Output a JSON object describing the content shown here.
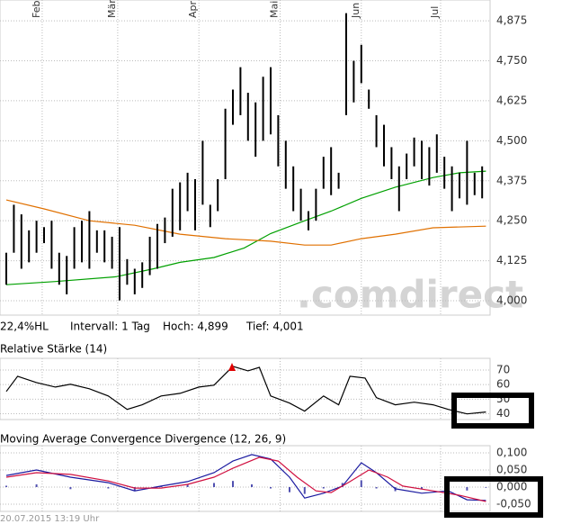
{
  "chart_data": [
    {
      "type": "stock",
      "xlim": [
        -1.67,
        128.1
      ],
      "ylim": [
        3.955,
        4.94
      ],
      "xticks": [
        {
          "value": 9.5,
          "label": "Feb"
        },
        {
          "value": 29.5,
          "label": "Mär"
        },
        {
          "value": 51,
          "label": "Apr"
        },
        {
          "value": 72.5,
          "label": "Mai"
        },
        {
          "value": 94,
          "label": "Jun"
        },
        {
          "value": 115,
          "label": "Jul"
        }
      ],
      "yticks": [
        {
          "value": 4.875,
          "label": "4,875"
        },
        {
          "value": 4.75,
          "label": "4,750"
        },
        {
          "value": 4.625,
          "label": "4,625"
        },
        {
          "value": 4.5,
          "label": "4,500"
        },
        {
          "value": 4.375,
          "label": "4,375"
        },
        {
          "value": 4.25,
          "label": "4,250"
        },
        {
          "value": 4.125,
          "label": "4,125"
        },
        {
          "value": 4,
          "label": "4,000"
        }
      ],
      "grid": true,
      "color": "#000000",
      "x": [
        0,
        2,
        4,
        6,
        8,
        10,
        12,
        14,
        16,
        18,
        20,
        22,
        24,
        26,
        28,
        30,
        32,
        34,
        36,
        38,
        40,
        42,
        44,
        46,
        48,
        50,
        52,
        54,
        56,
        58,
        60,
        62,
        64,
        66,
        68,
        70,
        72,
        74,
        76,
        78,
        80,
        82,
        84,
        86,
        88,
        90,
        92,
        94,
        96,
        98,
        100,
        102,
        104,
        106,
        108,
        110,
        112,
        114,
        116,
        118,
        120,
        122,
        124,
        126
      ],
      "high": [
        4.15,
        4.3,
        4.27,
        4.22,
        4.25,
        4.23,
        4.25,
        4.15,
        4.14,
        4.23,
        4.25,
        4.28,
        4.22,
        4.22,
        4.2,
        4.23,
        4.13,
        4.1,
        4.12,
        4.2,
        4.24,
        4.26,
        4.35,
        4.37,
        4.4,
        4.38,
        4.5,
        4.3,
        4.38,
        4.6,
        4.66,
        4.73,
        4.65,
        4.62,
        4.7,
        4.73,
        4.58,
        4.5,
        4.42,
        4.35,
        4.28,
        4.35,
        4.45,
        4.48,
        4.4,
        4.899,
        4.75,
        4.8,
        4.66,
        4.58,
        4.55,
        4.48,
        4.42,
        4.46,
        4.51,
        4.5,
        4.48,
        4.52,
        4.45,
        4.42,
        4.4,
        4.5,
        4.4,
        4.42
      ],
      "low": [
        4.05,
        4.15,
        4.1,
        4.12,
        4.15,
        4.18,
        4.1,
        4.05,
        4.02,
        4.1,
        4.12,
        4.1,
        4.15,
        4.12,
        4.1,
        4.001,
        4.05,
        4.02,
        4.04,
        4.08,
        4.1,
        4.18,
        4.2,
        4.22,
        4.28,
        4.22,
        4.3,
        4.23,
        4.28,
        4.38,
        4.55,
        4.58,
        4.5,
        4.45,
        4.5,
        4.52,
        4.42,
        4.35,
        4.28,
        4.25,
        4.22,
        4.25,
        4.35,
        4.33,
        4.35,
        4.58,
        4.62,
        4.68,
        4.6,
        4.48,
        4.42,
        4.38,
        4.28,
        4.38,
        4.42,
        4.38,
        4.36,
        4.4,
        4.35,
        4.28,
        4.32,
        4.3,
        4.33,
        4.32
      ],
      "series": [
        {
          "color": "#00a000",
          "style": "line",
          "x": [
            0,
            13,
            29,
            39,
            46,
            55,
            63,
            70,
            79,
            86,
            94,
            103,
            113,
            120,
            127
          ],
          "values": [
            4.05,
            4.06,
            4.075,
            4.1,
            4.12,
            4.135,
            4.165,
            4.21,
            4.25,
            4.28,
            4.32,
            4.355,
            4.385,
            4.4,
            4.405
          ]
        },
        {
          "color": "#e07000",
          "style": "line",
          "x": [
            0,
            10,
            22,
            34,
            46,
            58,
            70,
            79,
            86,
            94,
            103,
            113,
            127
          ],
          "values": [
            4.315,
            4.287,
            4.25,
            4.236,
            4.208,
            4.194,
            4.186,
            4.174,
            4.174,
            4.194,
            4.208,
            4.228,
            4.233
          ]
        }
      ],
      "annotations": [
        "22,4%HL",
        "Intervall: 1 Tag",
        "Hoch: 4,899",
        "Tief: 4,001"
      ],
      "watermark": ".comdirect"
    },
    {
      "type": "line",
      "title": "Relative Stärke (14)",
      "xlim": [
        -1.67,
        128.1
      ],
      "ylim": [
        36,
        78
      ],
      "yticks": [
        70,
        60,
        50,
        40
      ],
      "grid": true,
      "series": [
        {
          "color": "#000000",
          "style": "line",
          "x": [
            0,
            3,
            8,
            13,
            17,
            22,
            27,
            32,
            36,
            41,
            46,
            51,
            55,
            60,
            64,
            67,
            70,
            75,
            79,
            84,
            88,
            91,
            95,
            98,
            103,
            108,
            113,
            117,
            122,
            127
          ],
          "values": [
            55.3,
            65.7,
            61.4,
            58.3,
            60.2,
            57.1,
            52.2,
            43,
            46.1,
            52.2,
            54,
            58.3,
            59.6,
            72.5,
            69.4,
            71.8,
            52.2,
            47.3,
            41.8,
            52.2,
            46.1,
            65.7,
            64.5,
            51,
            46.1,
            47.9,
            46.1,
            43,
            39.9,
            41.2
          ]
        }
      ]
    },
    {
      "type": "line",
      "title": "Moving Average Convergence Divergence (12, 26, 9)",
      "xlim": [
        -1.67,
        128.1
      ],
      "ylim": [
        -0.071,
        0.121
      ],
      "yticks": [
        {
          "value": 0.1,
          "label": "0,100"
        },
        {
          "value": 0.05,
          "label": "0,050"
        },
        {
          "value": 0,
          "label": "0,000"
        },
        {
          "value": -0.05,
          "label": "-0,050"
        }
      ],
      "grid": true,
      "series": [
        {
          "color": "#5050b0",
          "style": "bar",
          "x": [
            0,
            8,
            17,
            27,
            34,
            41,
            48,
            55,
            60,
            65,
            70,
            75,
            79,
            84,
            89,
            94,
            98,
            103,
            110,
            117,
            122,
            127
          ],
          "values": [
            0.004,
            0.008,
            -0.006,
            -0.004,
            -0.01,
            0.002,
            0.008,
            0.012,
            0.018,
            0.008,
            -0.004,
            -0.015,
            -0.02,
            -0.004,
            0.012,
            0.02,
            -0.004,
            -0.012,
            -0.006,
            0.004,
            -0.01,
            -0.002
          ]
        },
        {
          "color": "#1a1aa0",
          "style": "line",
          "x": [
            0,
            8,
            17,
            27,
            34,
            41,
            48,
            55,
            60,
            65,
            70,
            75,
            79,
            84,
            89,
            94,
            98,
            103,
            110,
            117,
            122,
            127
          ],
          "values": [
            0.034,
            0.05,
            0.029,
            0.013,
            -0.011,
            0.003,
            0.016,
            0.042,
            0.076,
            0.095,
            0.082,
            0.029,
            -0.032,
            -0.018,
            0.003,
            0.071,
            0.042,
            -0.005,
            -0.018,
            -0.011,
            -0.037,
            -0.039
          ]
        },
        {
          "color": "#d01040",
          "style": "line",
          "x": [
            0,
            8,
            17,
            27,
            34,
            41,
            48,
            55,
            60,
            67,
            72,
            77,
            82,
            86,
            91,
            96,
            101,
            105,
            113,
            120,
            127
          ],
          "values": [
            0.029,
            0.042,
            0.037,
            0.018,
            -0.003,
            -0.003,
            0.008,
            0.029,
            0.055,
            0.087,
            0.076,
            0.029,
            -0.011,
            -0.016,
            0.016,
            0.05,
            0.029,
            0.003,
            -0.011,
            -0.024,
            -0.042
          ]
        }
      ],
      "note": "20.07.2015 13:19 Uhr"
    }
  ]
}
